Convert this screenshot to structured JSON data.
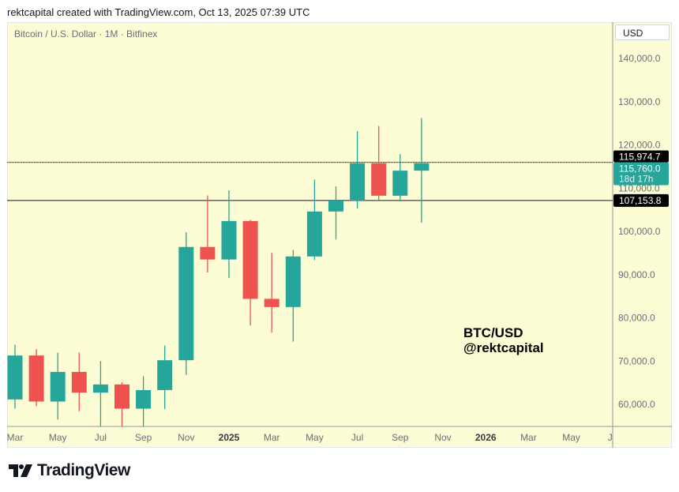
{
  "header": {
    "credit": "rektcapital created with TradingView.com, Oct 13, 2025 07:39 UTC"
  },
  "chart": {
    "symbol_title": "Bitcoin / U.S. Dollar · 1M · Bitfinex",
    "currency": "USD",
    "watermark_line1": "BTC/USD",
    "watermark_line2": "@rektcapital"
  },
  "footer": {
    "logo_text": "TradingView"
  },
  "colors": {
    "up": "#26a69a",
    "down": "#ef5350",
    "background": "#fdfdd5",
    "hline": "#555555"
  },
  "chart_data": {
    "type": "candlestick",
    "interval": "1M",
    "ylim": [
      55000,
      148000
    ],
    "y_ticks": [
      60000,
      70000,
      80000,
      90000,
      100000,
      110000,
      120000,
      130000,
      140000
    ],
    "y_tick_labels": [
      "60,000.0",
      "70,000.0",
      "80,000.0",
      "90,000.0",
      "100,000.0",
      "110,000.0",
      "120,000.0",
      "130,000.0",
      "140,000.0"
    ],
    "x_tick_labels": [
      "Mar",
      "May",
      "Jul",
      "Sep",
      "Nov",
      "2025",
      "Mar",
      "May",
      "Jul",
      "Sep",
      "Nov",
      "2026",
      "Mar",
      "May",
      "Jul"
    ],
    "x_tick_bold": [
      false,
      false,
      false,
      false,
      false,
      true,
      false,
      false,
      false,
      false,
      false,
      true,
      false,
      false,
      false
    ],
    "candles": [
      {
        "month": "2024-03",
        "open": 61130,
        "high": 73800,
        "low": 59000,
        "close": 71300
      },
      {
        "month": "2024-04",
        "open": 71300,
        "high": 72800,
        "low": 59600,
        "close": 60650
      },
      {
        "month": "2024-05",
        "open": 60650,
        "high": 71950,
        "low": 56500,
        "close": 67500
      },
      {
        "month": "2024-06",
        "open": 67500,
        "high": 72000,
        "low": 58400,
        "close": 62700
      },
      {
        "month": "2024-07",
        "open": 62700,
        "high": 70000,
        "low": 53500,
        "close": 64600
      },
      {
        "month": "2024-08",
        "open": 64600,
        "high": 65100,
        "low": 49000,
        "close": 59000
      },
      {
        "month": "2024-09",
        "open": 59000,
        "high": 66500,
        "low": 52500,
        "close": 63300
      },
      {
        "month": "2024-10",
        "open": 63300,
        "high": 73600,
        "low": 58900,
        "close": 70200
      },
      {
        "month": "2024-11",
        "open": 70200,
        "high": 99800,
        "low": 66800,
        "close": 96400
      },
      {
        "month": "2024-12",
        "open": 96400,
        "high": 108300,
        "low": 90500,
        "close": 93500
      },
      {
        "month": "2025-01",
        "open": 93500,
        "high": 109500,
        "low": 89200,
        "close": 102400
      },
      {
        "month": "2025-02",
        "open": 102400,
        "high": 102700,
        "low": 78200,
        "close": 84400
      },
      {
        "month": "2025-03",
        "open": 84400,
        "high": 95000,
        "low": 76600,
        "close": 82500
      },
      {
        "month": "2025-04",
        "open": 82500,
        "high": 95700,
        "low": 74500,
        "close": 94200
      },
      {
        "month": "2025-05",
        "open": 94200,
        "high": 112000,
        "low": 93400,
        "close": 104600
      },
      {
        "month": "2025-06",
        "open": 104600,
        "high": 110400,
        "low": 98200,
        "close": 107150
      },
      {
        "month": "2025-07",
        "open": 107150,
        "high": 123200,
        "low": 105300,
        "close": 115760
      },
      {
        "month": "2025-08",
        "open": 115760,
        "high": 124400,
        "low": 107300,
        "close": 108250
      },
      {
        "month": "2025-09",
        "open": 108250,
        "high": 117900,
        "low": 107300,
        "close": 114050
      },
      {
        "month": "2025-10",
        "open": 114050,
        "high": 126200,
        "low": 102000,
        "close": 115760
      }
    ],
    "horizontal_lines": [
      {
        "value": 115974.7,
        "label": "115,974.7",
        "style": "dotted"
      },
      {
        "value": 107153.8,
        "label": "107,153.8",
        "style": "solid"
      }
    ],
    "last_price": {
      "value": 115760.0,
      "label": "115,760.0",
      "countdown": "18d 17h"
    }
  }
}
